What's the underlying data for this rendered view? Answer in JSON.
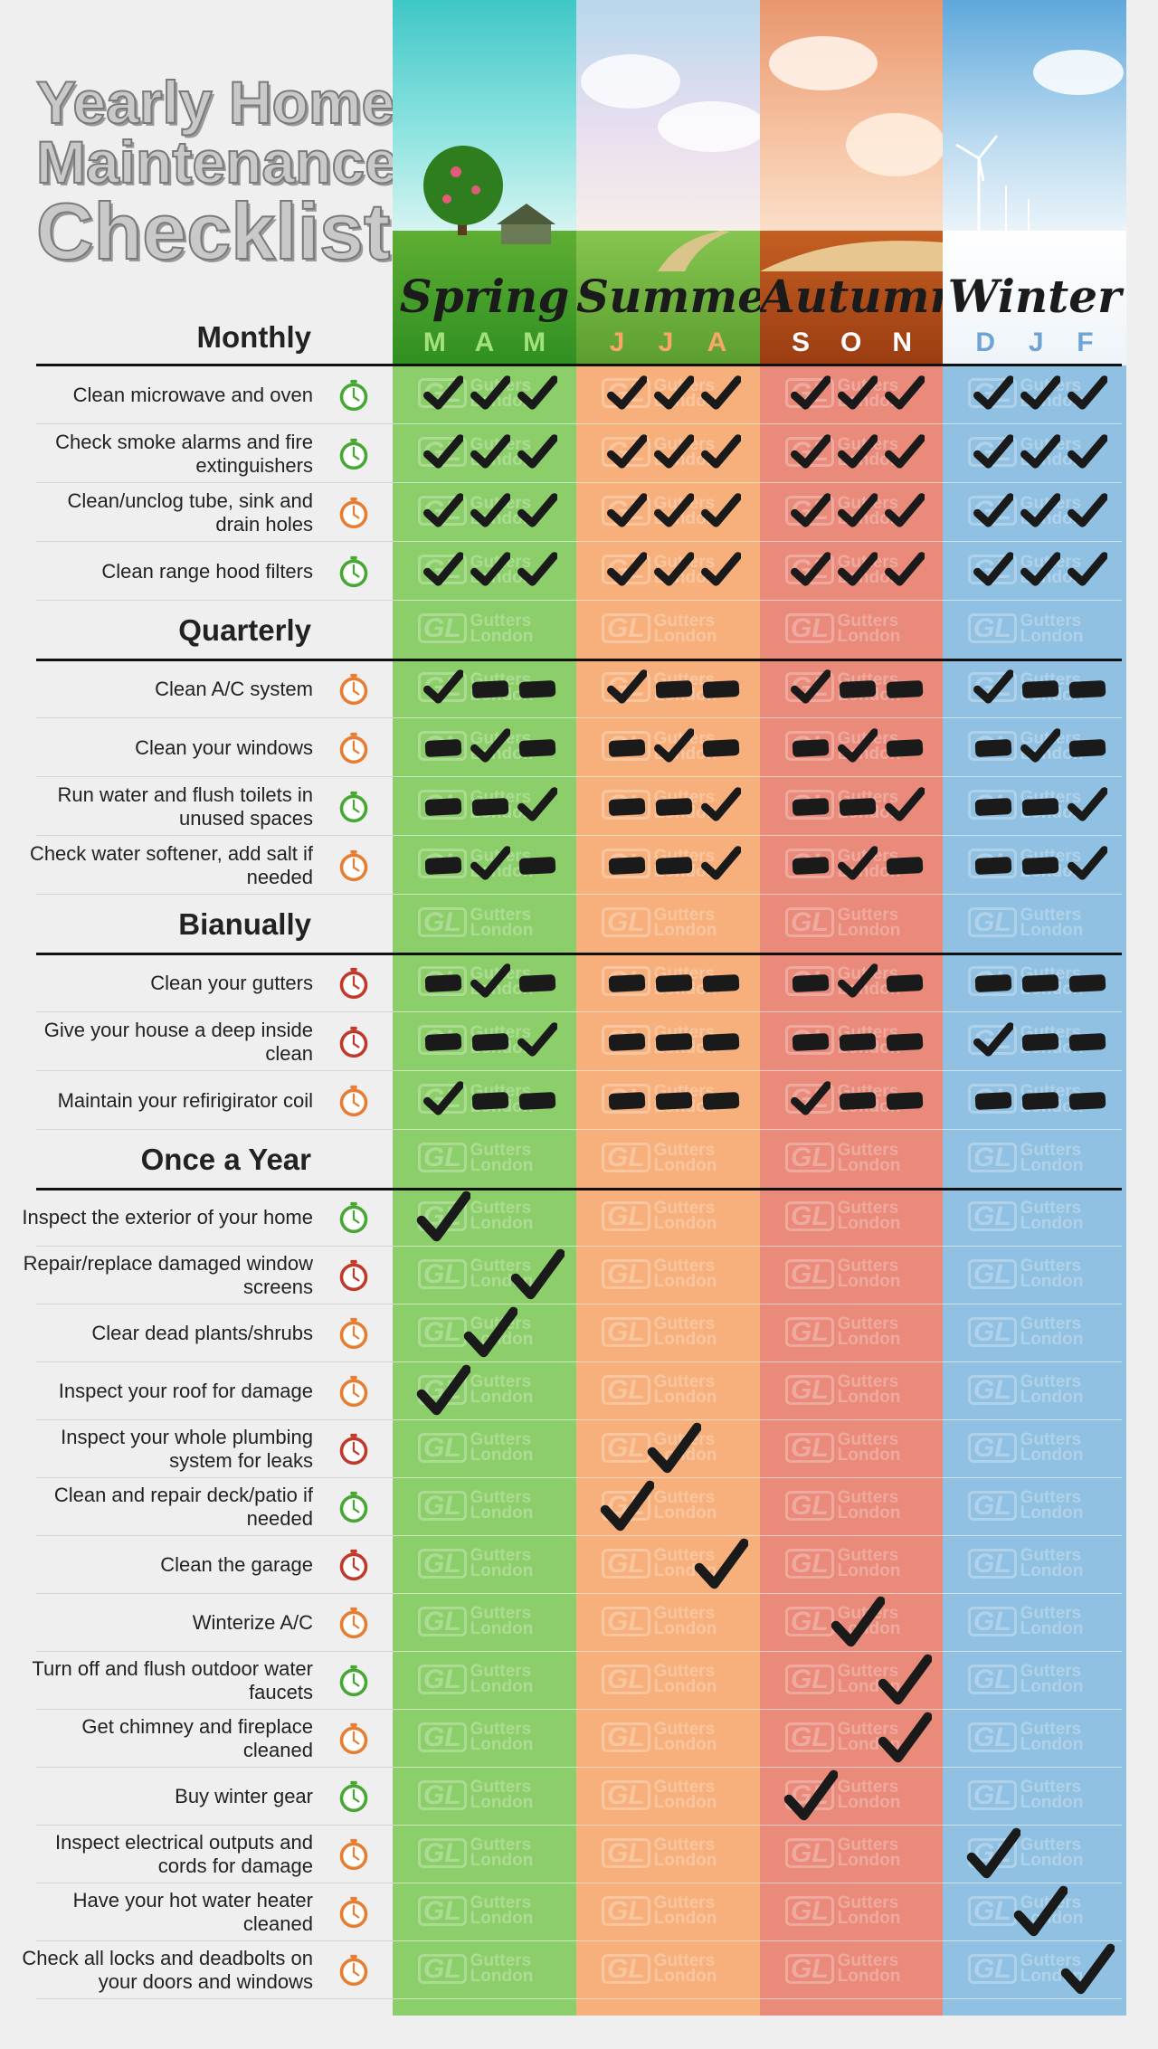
{
  "title": {
    "line1": "Yearly Home",
    "line2": "Maintenance",
    "line3": "Checklist"
  },
  "seasons": [
    {
      "name": "Spring",
      "months": [
        "M",
        "A",
        "M"
      ],
      "color": "#8ccf6a",
      "month_color": "#a3e07e"
    },
    {
      "name": "Summer",
      "months": [
        "J",
        "J",
        "A"
      ],
      "color": "#f7b07c",
      "month_color": "#f8a769"
    },
    {
      "name": "Autumn",
      "months": [
        "S",
        "O",
        "N"
      ],
      "color": "#e98a7a",
      "month_color": "#ffffff"
    },
    {
      "name": "Winter",
      "months": [
        "D",
        "J",
        "F"
      ],
      "color": "#90c1e2",
      "month_color": "#6ea3d6"
    }
  ],
  "watermark": {
    "logo": "GL",
    "line1": "Gutters",
    "line2": "London"
  },
  "sections": [
    {
      "title": "Monthly",
      "tasks": [
        {
          "label": "Clean microwave and oven",
          "timer": "green",
          "marks": [
            "c",
            "c",
            "c",
            "c",
            "c",
            "c",
            "c",
            "c",
            "c",
            "c",
            "c",
            "c"
          ]
        },
        {
          "label": "Check smoke alarms and fire extinguishers",
          "timer": "green",
          "marks": [
            "c",
            "c",
            "c",
            "c",
            "c",
            "c",
            "c",
            "c",
            "c",
            "c",
            "c",
            "c"
          ]
        },
        {
          "label": "Clean/unclog tube, sink and drain holes",
          "timer": "orange",
          "marks": [
            "c",
            "c",
            "c",
            "c",
            "c",
            "c",
            "c",
            "c",
            "c",
            "c",
            "c",
            "c"
          ]
        },
        {
          "label": "Clean range hood filters",
          "timer": "green",
          "marks": [
            "c",
            "c",
            "c",
            "c",
            "c",
            "c",
            "c",
            "c",
            "c",
            "c",
            "c",
            "c"
          ]
        }
      ]
    },
    {
      "title": "Quarterly",
      "tasks": [
        {
          "label": "Clean A/C system",
          "timer": "orange",
          "marks": [
            "c",
            "d",
            "d",
            "c",
            "d",
            "d",
            "c",
            "d",
            "d",
            "c",
            "d",
            "d"
          ]
        },
        {
          "label": "Clean your windows",
          "timer": "orange",
          "marks": [
            "d",
            "c",
            "d",
            "d",
            "c",
            "d",
            "d",
            "c",
            "d",
            "d",
            "c",
            "d"
          ]
        },
        {
          "label": "Run water and flush toilets in unused spaces",
          "timer": "green",
          "marks": [
            "d",
            "d",
            "c",
            "d",
            "d",
            "c",
            "d",
            "d",
            "c",
            "d",
            "d",
            "c"
          ]
        },
        {
          "label": "Check water softener, add salt if needed",
          "timer": "orange",
          "marks": [
            "d",
            "c",
            "d",
            "d",
            "d",
            "c",
            "d",
            "c",
            "d",
            "d",
            "d",
            "c"
          ]
        }
      ]
    },
    {
      "title": "Bianually",
      "tasks": [
        {
          "label": "Clean your gutters",
          "timer": "red",
          "marks": [
            "d",
            "c",
            "d",
            "d",
            "d",
            "d",
            "d",
            "c",
            "d",
            "d",
            "d",
            "d"
          ]
        },
        {
          "label": "Give your house a deep inside clean",
          "timer": "red",
          "marks": [
            "d",
            "d",
            "c",
            "d",
            "d",
            "d",
            "d",
            "d",
            "d",
            "c",
            "d",
            "d"
          ]
        },
        {
          "label": "Maintain your refirigirator coil",
          "timer": "orange",
          "marks": [
            "c",
            "d",
            "d",
            "d",
            "d",
            "d",
            "c",
            "d",
            "d",
            "d",
            "d",
            "d"
          ]
        }
      ]
    },
    {
      "title": "Once a Year",
      "tasks": [
        {
          "label": "Inspect the exterior of your home",
          "timer": "green",
          "marks": [
            "c",
            "",
            "",
            "",
            "",
            "",
            "",
            "",
            "",
            "",
            "",
            ""
          ]
        },
        {
          "label": "Repair/replace damaged window screens",
          "timer": "red",
          "marks": [
            "",
            "",
            "c",
            "",
            "",
            "",
            "",
            "",
            "",
            "",
            "",
            ""
          ]
        },
        {
          "label": "Clear dead plants/shrubs",
          "timer": "orange",
          "marks": [
            "",
            "c",
            "",
            "",
            "",
            "",
            "",
            "",
            "",
            "",
            "",
            ""
          ]
        },
        {
          "label": "Inspect your roof for damage",
          "timer": "orange",
          "marks": [
            "c",
            "",
            "",
            "",
            "",
            "",
            "",
            "",
            "",
            "",
            "",
            ""
          ]
        },
        {
          "label": "Inspect your whole plumbing system for leaks",
          "timer": "red",
          "marks": [
            "",
            "",
            "",
            "",
            "c",
            "",
            "",
            "",
            "",
            "",
            "",
            ""
          ]
        },
        {
          "label": "Clean and repair deck/patio if needed",
          "timer": "green",
          "marks": [
            "",
            "",
            "",
            "c",
            "",
            "",
            "",
            "",
            "",
            "",
            "",
            ""
          ]
        },
        {
          "label": "Clean the garage",
          "timer": "red",
          "marks": [
            "",
            "",
            "",
            "",
            "",
            "c",
            "",
            "",
            "",
            "",
            "",
            ""
          ]
        },
        {
          "label": "Winterize A/C",
          "timer": "orange",
          "marks": [
            "",
            "",
            "",
            "",
            "",
            "",
            "",
            "c",
            "",
            "",
            "",
            ""
          ]
        },
        {
          "label": "Turn off and flush outdoor water faucets",
          "timer": "green",
          "marks": [
            "",
            "",
            "",
            "",
            "",
            "",
            "",
            "",
            "c",
            "",
            "",
            ""
          ]
        },
        {
          "label": "Get chimney and fireplace cleaned",
          "timer": "orange",
          "marks": [
            "",
            "",
            "",
            "",
            "",
            "",
            "",
            "",
            "c",
            "",
            "",
            ""
          ]
        },
        {
          "label": "Buy winter gear",
          "timer": "green",
          "marks": [
            "",
            "",
            "",
            "",
            "",
            "",
            "c",
            "",
            "",
            "",
            "",
            ""
          ]
        },
        {
          "label": "Inspect electrical outputs and cords for damage",
          "timer": "orange",
          "marks": [
            "",
            "",
            "",
            "",
            "",
            "",
            "",
            "",
            "",
            "c",
            "",
            ""
          ]
        },
        {
          "label": "Have your hot water heater cleaned",
          "timer": "orange",
          "marks": [
            "",
            "",
            "",
            "",
            "",
            "",
            "",
            "",
            "",
            "",
            "c",
            ""
          ]
        },
        {
          "label": "Check all locks and deadbolts on your doors and windows",
          "timer": "orange",
          "marks": [
            "",
            "",
            "",
            "",
            "",
            "",
            "",
            "",
            "",
            "",
            "",
            "c"
          ]
        }
      ]
    }
  ]
}
